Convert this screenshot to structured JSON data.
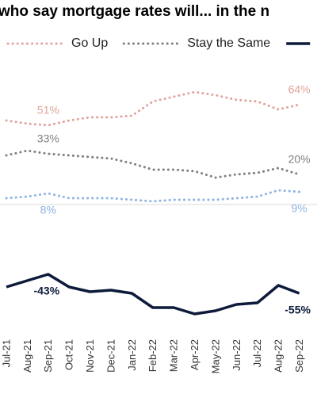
{
  "chart_data": {
    "type": "line",
    "title": "who say mortgage rates will... in the n",
    "categories": [
      "Jul-21",
      "Aug-21",
      "Sep-21",
      "Oct-21",
      "Nov-21",
      "Dec-21",
      "Jan-22",
      "Feb-22",
      "Mar-22",
      "Apr-22",
      "May-22",
      "Jun-22",
      "Jul-22",
      "Aug-22",
      "Sep-22"
    ],
    "ylim": [
      -80,
      130
    ],
    "series": [
      {
        "name": "Go Up",
        "color": "#e0a39c",
        "style": "dotted",
        "values": [
          54,
          52,
          51,
          54,
          56,
          56,
          57,
          66,
          69,
          72,
          70,
          67,
          66,
          61,
          64
        ],
        "value_labels": [
          null,
          null,
          "51%",
          null,
          null,
          null,
          null,
          null,
          null,
          null,
          null,
          null,
          null,
          null,
          "64%"
        ]
      },
      {
        "name": "Stay the Same",
        "color": "#7f7f7f",
        "style": "dotted",
        "values": [
          32,
          35,
          33,
          32,
          31,
          30,
          27,
          23,
          23,
          22,
          18,
          20,
          21,
          24,
          20
        ],
        "value_labels": [
          null,
          null,
          "33%",
          null,
          null,
          null,
          null,
          null,
          null,
          null,
          null,
          null,
          null,
          null,
          "20%"
        ]
      },
      {
        "color": "#8db4e2",
        "style": "dotted",
        "values": [
          5,
          6,
          8,
          5,
          5,
          5,
          4,
          3,
          4,
          4,
          4,
          5,
          6,
          10,
          9
        ],
        "value_labels": [
          null,
          null,
          "8%",
          null,
          null,
          null,
          null,
          null,
          null,
          null,
          null,
          null,
          null,
          null,
          "9%"
        ]
      },
      {
        "color": "#0d1a3a",
        "style": "solid",
        "values": [
          -51,
          -47,
          -43,
          -51,
          -54,
          -53,
          -55,
          -64,
          -64,
          -68,
          -66,
          -62,
          -61,
          -50,
          -55
        ],
        "value_labels": [
          null,
          null,
          "-43%",
          null,
          null,
          null,
          null,
          null,
          null,
          null,
          null,
          null,
          null,
          null,
          "-55%"
        ]
      }
    ]
  }
}
